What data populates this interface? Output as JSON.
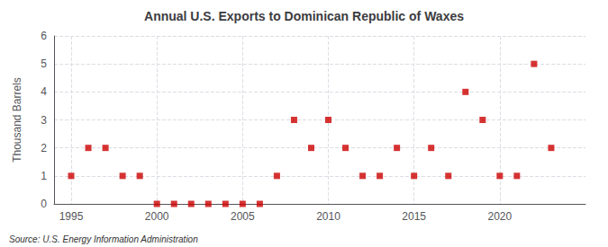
{
  "chart_data": {
    "type": "scatter",
    "title": "Annual U.S. Exports to Dominican Republic of Waxes",
    "ylabel": "Thousand Barrels",
    "annotations": [
      "Source: U.S. Energy Information Administration"
    ],
    "x": [
      1995,
      1996,
      1997,
      1998,
      1999,
      2000,
      2001,
      2002,
      2003,
      2004,
      2005,
      2006,
      2007,
      2008,
      2009,
      2010,
      2011,
      2012,
      2013,
      2014,
      2015,
      2016,
      2017,
      2018,
      2019,
      2020,
      2021,
      2022,
      2023
    ],
    "values": [
      1,
      2,
      2,
      1,
      1,
      0,
      0,
      0,
      0,
      0,
      0,
      0,
      1,
      3,
      2,
      3,
      2,
      1,
      1,
      2,
      1,
      2,
      1,
      4,
      3,
      1,
      1,
      5,
      2
    ],
    "color": "#cc0000",
    "marker": "square",
    "xlim": [
      1994,
      2025
    ],
    "ylim": [
      0,
      6
    ],
    "xticks": [
      1995,
      2000,
      2005,
      2010,
      2015,
      2020
    ],
    "yticks": [
      0,
      1,
      2,
      3,
      4,
      5,
      6
    ],
    "grid": true
  }
}
